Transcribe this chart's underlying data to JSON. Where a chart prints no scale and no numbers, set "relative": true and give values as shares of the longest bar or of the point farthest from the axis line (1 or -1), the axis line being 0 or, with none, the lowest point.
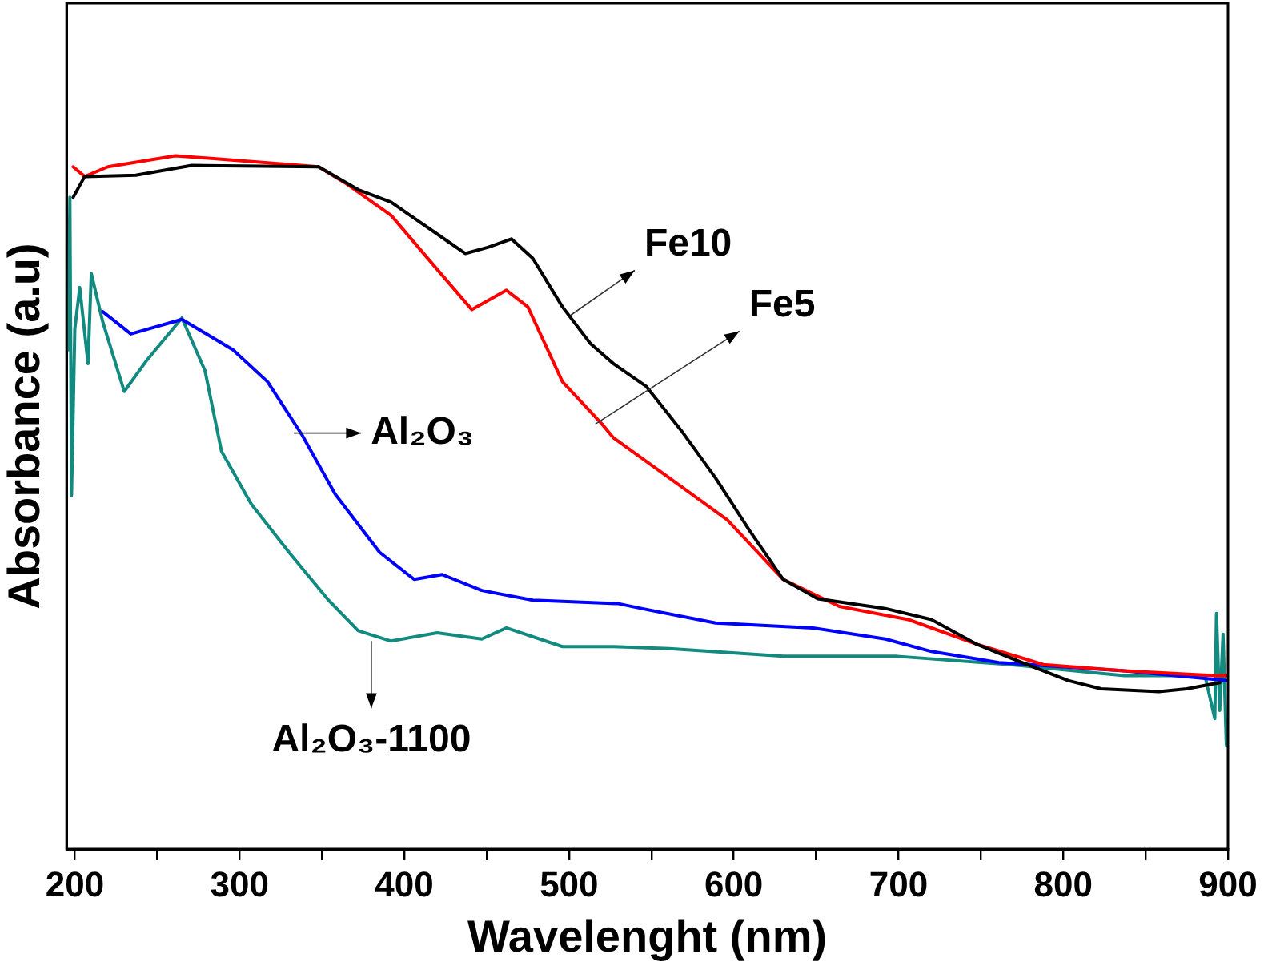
{
  "chart_data": {
    "type": "line",
    "relative": true,
    "xlabel": "Wavelenght (nm)",
    "ylabel": "Absorbance (a.u)",
    "xlim": [
      195,
      900
    ],
    "xticks": [
      200,
      {
        "value": 250,
        "label": null
      },
      300,
      {
        "value": 350,
        "label": null
      },
      400,
      {
        "value": 450,
        "label": null
      },
      500,
      {
        "value": 550,
        "label": null
      },
      600,
      {
        "value": 650,
        "label": null
      },
      700,
      {
        "value": 750,
        "label": null
      },
      800,
      {
        "value": 850,
        "label": null
      },
      900
    ],
    "tick_labels": "x",
    "grid": false,
    "legend": false,
    "marker": "none",
    "line_style": "solid",
    "series": [
      {
        "color": "#000000",
        "x": [
          199,
          206,
          237,
          271,
          348,
          372,
          392,
          420,
          437,
          451,
          465,
          478,
          496,
          513,
          527,
          547,
          568,
          589,
          610,
          630,
          651,
          692,
          720,
          747,
          775,
          803,
          823,
          858,
          875,
          895
        ],
        "values": [
          0.94,
          0.97,
          0.972,
          0.986,
          0.984,
          0.951,
          0.933,
          0.887,
          0.859,
          0.868,
          0.88,
          0.852,
          0.782,
          0.729,
          0.7,
          0.667,
          0.604,
          0.535,
          0.458,
          0.389,
          0.361,
          0.347,
          0.331,
          0.296,
          0.269,
          0.243,
          0.231,
          0.227,
          0.231,
          0.24
        ]
      },
      {
        "color": "#ff0000",
        "x": [
          199,
          206,
          220,
          261,
          289,
          348,
          364,
          392,
          420,
          441,
          462,
          475,
          496,
          520,
          527,
          561,
          596,
          630,
          664,
          706,
          747,
          788,
          837,
          892,
          900
        ],
        "values": [
          0.984,
          0.97,
          0.984,
          1,
          0.995,
          0.984,
          0.961,
          0.914,
          0.836,
          0.778,
          0.806,
          0.782,
          0.674,
          0.613,
          0.593,
          0.535,
          0.475,
          0.389,
          0.35,
          0.331,
          0.296,
          0.266,
          0.257,
          0.25,
          0.25
        ]
      },
      {
        "color": "#0000ff",
        "x": [
          217,
          234,
          265,
          296,
          317,
          338,
          358,
          385,
          406,
          423,
          447,
          478,
          530,
          544,
          589,
          648,
          692,
          720,
          761,
          837,
          900
        ],
        "values": [
          0.775,
          0.743,
          0.764,
          0.72,
          0.674,
          0.597,
          0.512,
          0.428,
          0.389,
          0.396,
          0.373,
          0.359,
          0.354,
          0.347,
          0.326,
          0.319,
          0.303,
          0.285,
          0.269,
          0.257,
          0.243
        ]
      },
      {
        "color": "#138a80",
        "x": [
          196,
          197,
          198,
          200,
          203,
          208,
          210,
          217,
          230,
          244,
          265,
          279,
          289,
          307,
          330,
          354,
          372,
          392,
          420,
          447,
          462,
          496,
          527,
          561,
          630,
          699,
          768,
          837,
          886,
          892,
          893,
          895,
          897,
          899
        ],
        "values": [
          0.72,
          0.94,
          0.51,
          0.75,
          0.81,
          0.7,
          0.83,
          0.76,
          0.66,
          0.706,
          0.766,
          0.69,
          0.574,
          0.498,
          0.428,
          0.359,
          0.315,
          0.3,
          0.312,
          0.303,
          0.319,
          0.292,
          0.292,
          0.289,
          0.278,
          0.278,
          0.266,
          0.25,
          0.25,
          0.188,
          0.34,
          0.2,
          0.31,
          0.15
        ]
      }
    ],
    "annotations": [
      {
        "text": "Fe10",
        "x": 501,
        "y": 0.77
      },
      {
        "text": "Fe5",
        "x": 516,
        "y": 0.613
      },
      {
        "text": "Al₂O₃",
        "x": 333,
        "y": 0.6
      },
      {
        "text": "Al₂O₃-1100",
        "x": 380,
        "y": 0.3
      }
    ]
  }
}
